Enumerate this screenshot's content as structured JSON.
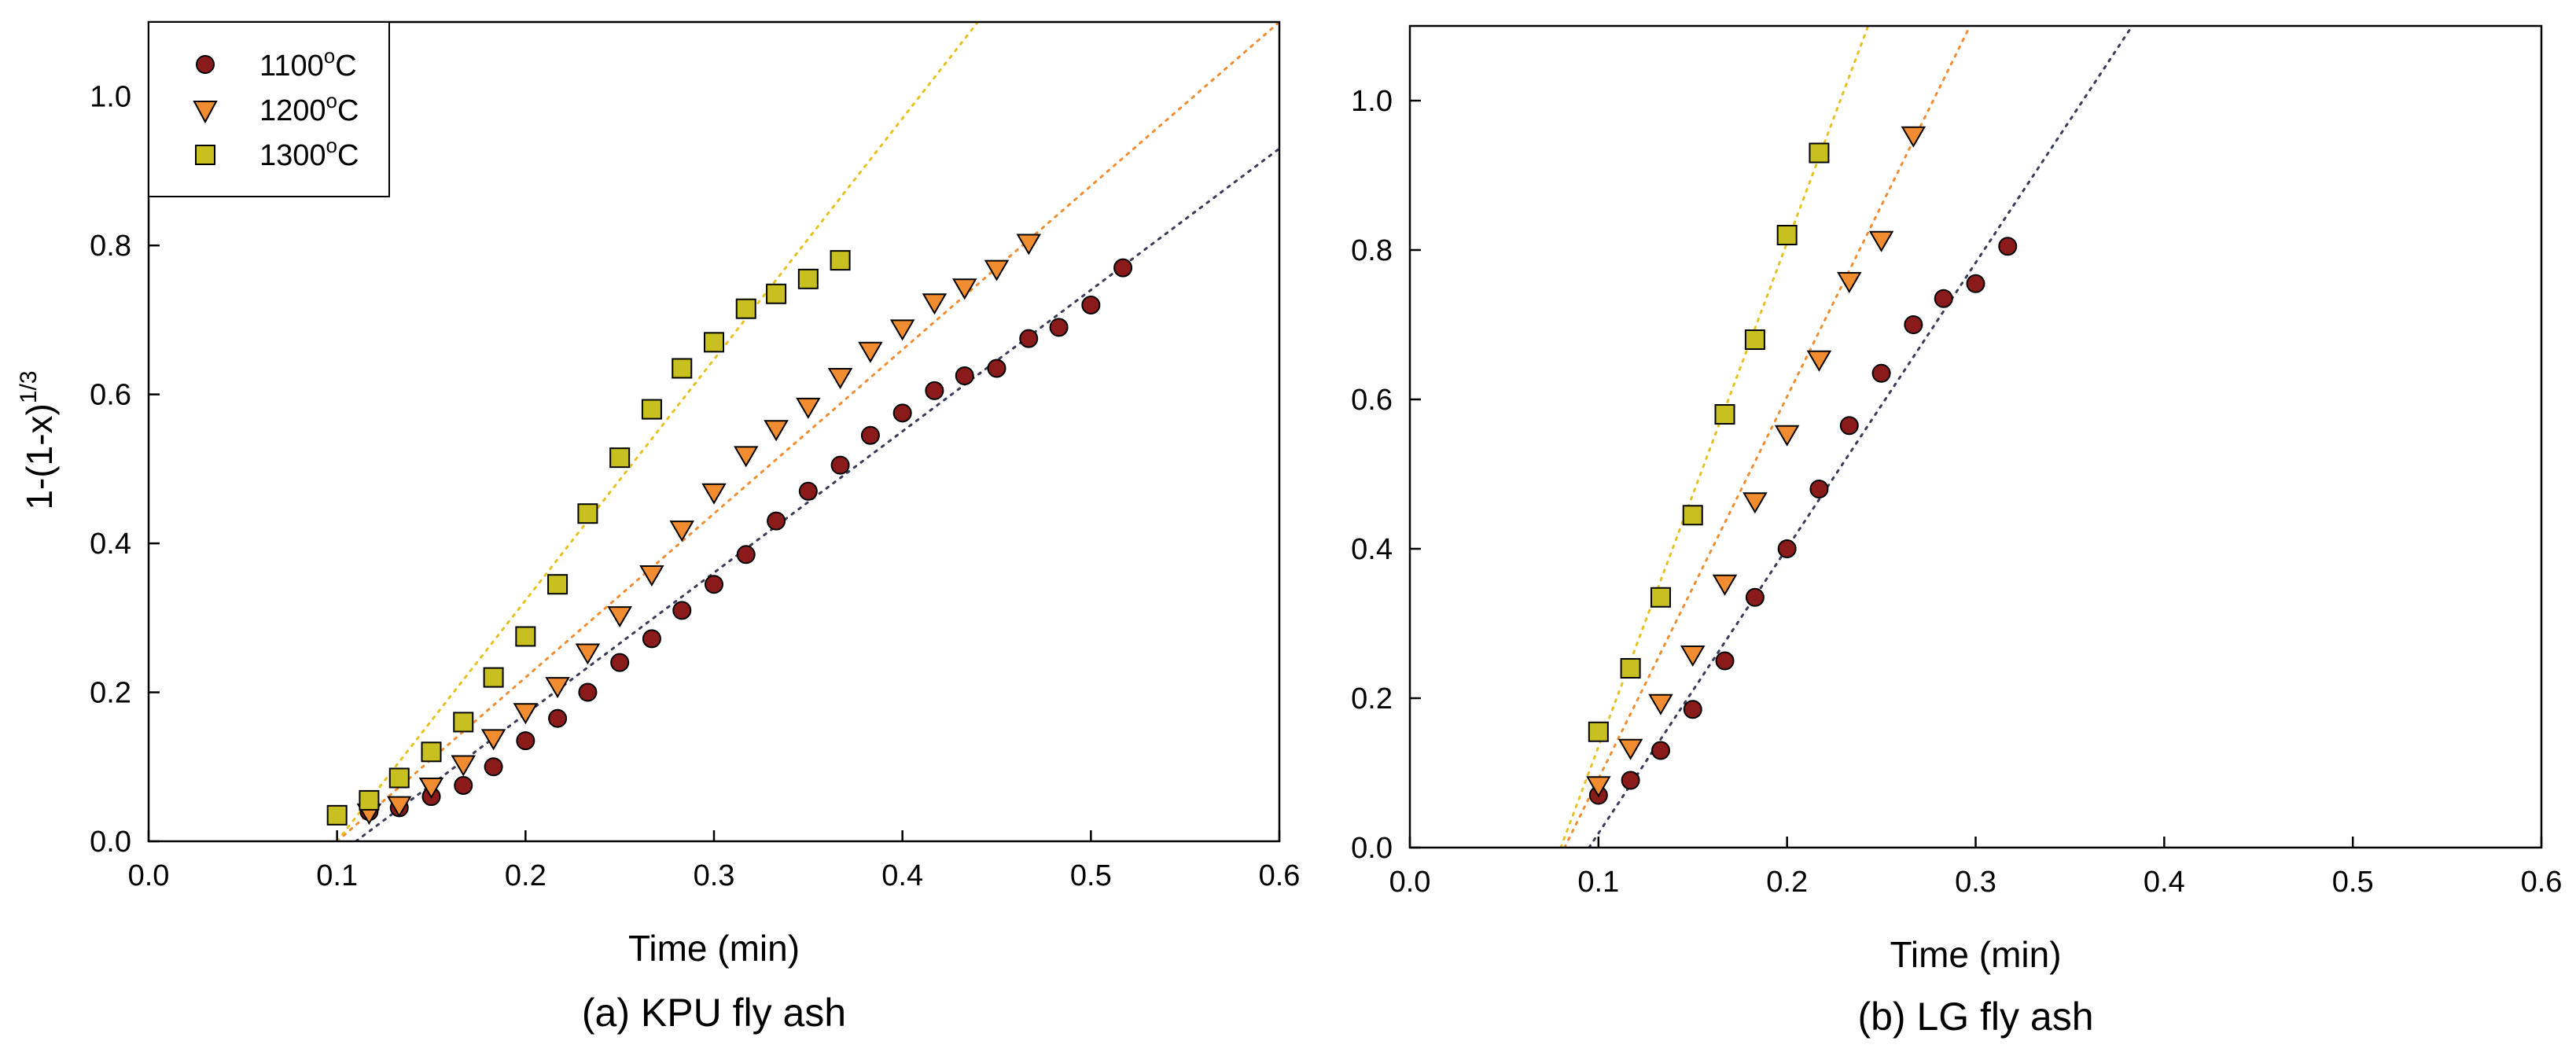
{
  "figure": {
    "ylabel_base": "1-(1-x)",
    "ylabel_sup": "1/3"
  },
  "legend": [
    {
      "label": "1100°C",
      "temp_base": "1100",
      "temp_sup": "o",
      "temp_unit": "C",
      "marker": "circle",
      "color": "#8B1A1A"
    },
    {
      "label": "1200°C",
      "temp_base": "1200",
      "temp_sup": "o",
      "temp_unit": "C",
      "marker": "triangle-down",
      "color": "#F28C30"
    },
    {
      "label": "1300°C",
      "temp_base": "1300",
      "temp_sup": "o",
      "temp_unit": "C",
      "marker": "square",
      "color": "#C8C020"
    }
  ],
  "chart_data": [
    {
      "type": "scatter",
      "caption": "(a) KPU fly ash",
      "xlabel": "Time (min)",
      "ylabel": "1-(1-x)^1/3",
      "xlim": [
        0.0,
        0.6
      ],
      "ylim": [
        0.0,
        1.1
      ],
      "xticks": [
        "0.0",
        "0.1",
        "0.2",
        "0.3",
        "0.4",
        "0.5",
        "0.6"
      ],
      "yticks": [
        "0.0",
        "0.2",
        "0.4",
        "0.6",
        "0.8",
        "1.0"
      ],
      "legend_position": "top-left",
      "series": [
        {
          "name": "1100°C",
          "marker": "circle",
          "color": "#8B1A1A",
          "x": [
            0.1,
            0.117,
            0.133,
            0.15,
            0.167,
            0.183,
            0.2,
            0.217,
            0.233,
            0.25,
            0.267,
            0.283,
            0.3,
            0.317,
            0.333,
            0.35,
            0.367,
            0.383,
            0.4,
            0.417,
            0.433,
            0.45,
            0.467,
            0.483,
            0.5,
            0.517
          ],
          "y": [
            0.035,
            0.04,
            0.045,
            0.06,
            0.075,
            0.1,
            0.135,
            0.165,
            0.2,
            0.24,
            0.272,
            0.31,
            0.345,
            0.385,
            0.43,
            0.47,
            0.505,
            0.545,
            0.575,
            0.605,
            0.625,
            0.635,
            0.675,
            0.69,
            0.72,
            0.77
          ],
          "fit_line": {
            "x": [
              0.11,
              0.6
            ],
            "y": [
              0.0,
              0.93
            ],
            "color": "#3a3a5a"
          }
        },
        {
          "name": "1200°C",
          "marker": "triangle-down",
          "color": "#F28C30",
          "x": [
            0.117,
            0.133,
            0.15,
            0.167,
            0.183,
            0.2,
            0.217,
            0.233,
            0.25,
            0.267,
            0.283,
            0.3,
            0.317,
            0.333,
            0.35,
            0.367,
            0.383,
            0.4,
            0.417,
            0.433,
            0.45,
            0.467
          ],
          "y": [
            0.04,
            0.05,
            0.075,
            0.105,
            0.14,
            0.175,
            0.21,
            0.255,
            0.305,
            0.36,
            0.42,
            0.47,
            0.52,
            0.555,
            0.585,
            0.625,
            0.66,
            0.69,
            0.725,
            0.745,
            0.77,
            0.805
          ],
          "fit_line": {
            "x": [
              0.1,
              0.6
            ],
            "y": [
              0.0,
              1.1
            ],
            "color": "#F28C30"
          }
        },
        {
          "name": "1300°C",
          "marker": "square",
          "color": "#C8C020",
          "x": [
            0.1,
            0.117,
            0.133,
            0.15,
            0.167,
            0.183,
            0.2,
            0.217,
            0.233,
            0.25,
            0.267,
            0.283,
            0.3,
            0.317,
            0.333,
            0.35,
            0.367
          ],
          "y": [
            0.035,
            0.055,
            0.085,
            0.12,
            0.16,
            0.22,
            0.275,
            0.345,
            0.44,
            0.515,
            0.58,
            0.635,
            0.67,
            0.715,
            0.735,
            0.755,
            0.78
          ],
          "fit_line": {
            "x": [
              0.1,
              0.44
            ],
            "y": [
              0.0,
              1.1
            ],
            "color": "#E8C020"
          }
        }
      ]
    },
    {
      "type": "scatter",
      "caption": "(b) LG fly ash",
      "xlabel": "Time (min)",
      "ylabel": "",
      "xlim": [
        0.0,
        0.6
      ],
      "ylim": [
        0.0,
        1.1
      ],
      "xticks": [
        "0.0",
        "0.1",
        "0.2",
        "0.3",
        "0.4",
        "0.5",
        "0.6"
      ],
      "yticks": [
        "0.0",
        "0.2",
        "0.4",
        "0.6",
        "0.8",
        "1.0"
      ],
      "series": [
        {
          "name": "1100°C",
          "marker": "circle",
          "color": "#8B1A1A",
          "x": [
            0.1,
            0.117,
            0.133,
            0.15,
            0.167,
            0.183,
            0.2,
            0.217,
            0.233,
            0.25,
            0.267,
            0.283,
            0.3,
            0.317
          ],
          "y": [
            0.07,
            0.09,
            0.13,
            0.185,
            0.25,
            0.335,
            0.4,
            0.48,
            0.565,
            0.635,
            0.7,
            0.735,
            0.755,
            0.805
          ],
          "fit_line": {
            "x": [
              0.095,
              0.383
            ],
            "y": [
              0.0,
              1.1
            ],
            "color": "#3a3a5a"
          }
        },
        {
          "name": "1200°C",
          "marker": "triangle-down",
          "color": "#F28C30",
          "x": [
            0.1,
            0.117,
            0.133,
            0.15,
            0.167,
            0.183,
            0.2,
            0.217,
            0.233,
            0.25,
            0.267
          ],
          "y": [
            0.085,
            0.135,
            0.195,
            0.26,
            0.355,
            0.465,
            0.555,
            0.655,
            0.76,
            0.815,
            0.955
          ],
          "fit_line": {
            "x": [
              0.082,
              0.297
            ],
            "y": [
              0.0,
              1.1
            ],
            "color": "#F28C30"
          }
        },
        {
          "name": "1300°C",
          "marker": "square",
          "color": "#C8C020",
          "x": [
            0.1,
            0.117,
            0.133,
            0.15,
            0.167,
            0.183,
            0.2,
            0.217
          ],
          "y": [
            0.155,
            0.24,
            0.335,
            0.445,
            0.58,
            0.68,
            0.82,
            0.93
          ],
          "fit_line": {
            "x": [
              0.08,
              0.243
            ],
            "y": [
              0.0,
              1.1
            ],
            "color": "#E8C020"
          }
        }
      ]
    }
  ]
}
